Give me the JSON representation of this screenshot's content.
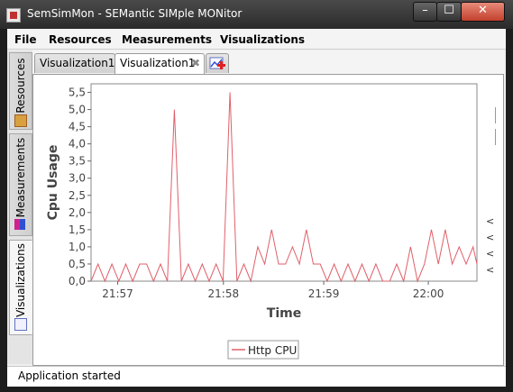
{
  "window": {
    "title": "SemSimMon - SEMantic SIMple MONitor"
  },
  "menu": [
    "File",
    "Resources",
    "Measurements",
    "Visualizations"
  ],
  "side_tabs": [
    {
      "label": "Resources",
      "icon": "resources-icon"
    },
    {
      "label": "Measurements",
      "icon": "measurements-icon"
    },
    {
      "label": "Visualizations",
      "icon": "visualizations-icon"
    }
  ],
  "tabs": [
    {
      "label": "Visualization1",
      "active": false
    },
    {
      "label": "Visualization1",
      "active": true,
      "closable": true
    }
  ],
  "status": "Application started",
  "chart_data": {
    "type": "line",
    "xlabel": "Time",
    "ylabel": "Cpu Usage",
    "ylim": [
      0,
      5.75
    ],
    "yticks": [
      "0,0",
      "0,5",
      "1,0",
      "1,5",
      "2,0",
      "2,5",
      "3,0",
      "3,5",
      "4,0",
      "4,5",
      "5,0",
      "5,5"
    ],
    "xlim": [
      0,
      1
    ],
    "xticks": [
      {
        "label": "21:57",
        "x": 0.069
      },
      {
        "label": "21:58",
        "x": 0.343
      },
      {
        "label": "21:59",
        "x": 0.603
      },
      {
        "label": "22:00",
        "x": 0.874
      }
    ],
    "legend": "bottom-center",
    "series": [
      {
        "name": "Http CPU",
        "color": "#e0606a",
        "x": [
          0,
          0.018,
          0.036,
          0.054,
          0.072,
          0.09,
          0.108,
          0.126,
          0.144,
          0.162,
          0.18,
          0.198,
          0.216,
          0.234,
          0.252,
          0.27,
          0.288,
          0.306,
          0.324,
          0.342,
          0.36,
          0.378,
          0.396,
          0.414,
          0.432,
          0.45,
          0.468,
          0.486,
          0.504,
          0.522,
          0.54,
          0.558,
          0.576,
          0.594,
          0.612,
          0.63,
          0.648,
          0.666,
          0.684,
          0.702,
          0.72,
          0.738,
          0.756,
          0.774,
          0.792,
          0.81,
          0.828,
          0.846,
          0.864,
          0.882,
          0.9,
          0.918,
          0.936,
          0.954,
          0.972,
          0.99,
          1.0
        ],
        "values": [
          0,
          0.5,
          0,
          0.5,
          0,
          0.5,
          0,
          0.5,
          0.5,
          0,
          0.5,
          0,
          5.0,
          0,
          0.5,
          0,
          0.5,
          0,
          0.5,
          0,
          5.5,
          0,
          0.5,
          0,
          1.0,
          0.5,
          1.5,
          0.5,
          0.5,
          1.0,
          0.5,
          1.5,
          0.5,
          0.5,
          0,
          0.5,
          0,
          0.5,
          0,
          0.5,
          0,
          0.5,
          0,
          0,
          0.5,
          0,
          1.0,
          0,
          0.5,
          1.5,
          0.5,
          1.5,
          0.5,
          1.0,
          0.5,
          1.0,
          0.5
        ]
      }
    ]
  }
}
